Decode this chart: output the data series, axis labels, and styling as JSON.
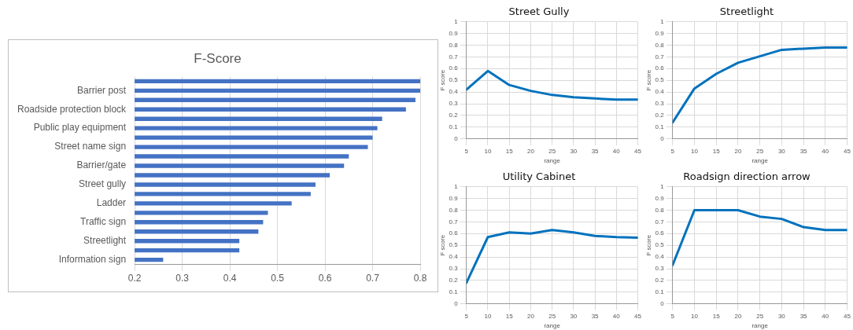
{
  "chart_data": [
    {
      "type": "bar",
      "orientation": "horizontal",
      "title": "F-Score",
      "categories": [
        null,
        "Barrier post",
        null,
        "Roadside protection block",
        null,
        "Public play equipment",
        null,
        "Street name sign",
        null,
        "Barrier/gate",
        null,
        "Street gully",
        null,
        "Ladder",
        null,
        "Traffic sign",
        null,
        "Streetlight",
        null,
        "Information sign"
      ],
      "values": [
        0.8,
        0.8,
        0.79,
        0.77,
        0.72,
        0.71,
        0.7,
        0.69,
        0.65,
        0.64,
        0.61,
        0.58,
        0.57,
        0.53,
        0.48,
        0.47,
        0.46,
        0.42,
        0.42,
        0.26
      ],
      "color": "#4472c4",
      "xlim": [
        0.2,
        0.8
      ],
      "xticks": [
        0.2,
        0.3,
        0.4,
        0.5,
        0.6,
        0.7,
        0.8
      ],
      "grid": "x",
      "legend": false
    },
    {
      "type": "line",
      "title": "Street Gully",
      "xlabel": "range",
      "ylabel": "F score",
      "x": [
        5,
        10,
        15,
        20,
        25,
        30,
        35,
        40,
        45
      ],
      "series": [
        {
          "color": "#0072bd",
          "values": [
            0.42,
            0.58,
            0.46,
            0.41,
            0.375,
            0.355,
            0.345,
            0.335,
            0.335
          ]
        }
      ],
      "xlim": [
        5,
        45
      ],
      "xticks": [
        5,
        10,
        15,
        20,
        25,
        30,
        35,
        40,
        45
      ],
      "ylim": [
        0,
        1
      ],
      "yticks": [
        0,
        0.1,
        0.2,
        0.3,
        0.4,
        0.5,
        0.6,
        0.7,
        0.8,
        0.9,
        1
      ],
      "grid": true,
      "legend": false,
      "marker": "none"
    },
    {
      "type": "line",
      "title": "Streetlight",
      "xlabel": "range",
      "ylabel": "F score",
      "x": [
        5,
        10,
        15,
        20,
        25,
        30,
        35,
        40,
        45
      ],
      "series": [
        {
          "color": "#0072bd",
          "values": [
            0.14,
            0.43,
            0.555,
            0.65,
            0.705,
            0.76,
            0.77,
            0.78,
            0.78
          ]
        }
      ],
      "xlim": [
        5,
        45
      ],
      "xticks": [
        5,
        10,
        15,
        20,
        25,
        30,
        35,
        40,
        45
      ],
      "ylim": [
        0,
        1
      ],
      "yticks": [
        0,
        0.1,
        0.2,
        0.3,
        0.4,
        0.5,
        0.6,
        0.7,
        0.8,
        0.9,
        1
      ],
      "grid": true,
      "legend": false,
      "marker": "none"
    },
    {
      "type": "line",
      "title": "Utility Cabinet",
      "xlabel": "range",
      "ylabel": "F score",
      "x": [
        5,
        10,
        15,
        20,
        25,
        30,
        35,
        40,
        45
      ],
      "series": [
        {
          "color": "#0072bd",
          "values": [
            0.18,
            0.57,
            0.61,
            0.6,
            0.63,
            0.61,
            0.58,
            0.57,
            0.565
          ]
        }
      ],
      "xlim": [
        5,
        45
      ],
      "xticks": [
        5,
        10,
        15,
        20,
        25,
        30,
        35,
        40,
        45
      ],
      "ylim": [
        0,
        1
      ],
      "yticks": [
        0,
        0.1,
        0.2,
        0.3,
        0.4,
        0.5,
        0.6,
        0.7,
        0.8,
        0.9,
        1
      ],
      "grid": true,
      "legend": false,
      "marker": "none"
    },
    {
      "type": "line",
      "title": "Roadsign direction arrow",
      "xlabel": "range",
      "ylabel": "F score",
      "x": [
        5,
        10,
        15,
        20,
        25,
        30,
        35,
        40,
        45
      ],
      "series": [
        {
          "color": "#0072bd",
          "values": [
            0.33,
            0.8,
            0.8,
            0.8,
            0.745,
            0.725,
            0.655,
            0.63,
            0.63
          ]
        }
      ],
      "xlim": [
        5,
        45
      ],
      "xticks": [
        5,
        10,
        15,
        20,
        25,
        30,
        35,
        40,
        45
      ],
      "ylim": [
        0,
        1
      ],
      "yticks": [
        0,
        0.1,
        0.2,
        0.3,
        0.4,
        0.5,
        0.6,
        0.7,
        0.8,
        0.9,
        1
      ],
      "grid": true,
      "legend": false,
      "marker": "none"
    }
  ]
}
